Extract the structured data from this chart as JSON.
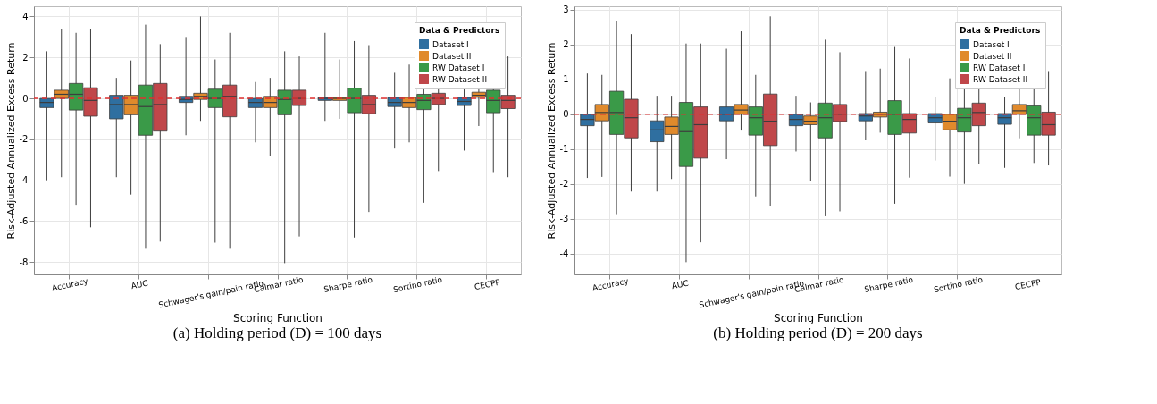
{
  "chart_data": [
    {
      "type": "box",
      "title": "(a) Holding period (D) = 100 days",
      "xlabel": "Scoring Function",
      "ylabel": "Risk-Adjusted Annualized Excess Return",
      "legend_title": "Data & Predictors",
      "legend": "top right",
      "grid": true,
      "categories": [
        "Accuracy",
        "AUC",
        "Schwager's gain/pain ratio",
        "Calmar ratio",
        "Sharpe ratio",
        "Sortino ratio",
        "CECPP"
      ],
      "ylim": [
        -8.6,
        4.5
      ],
      "yticks": [
        -8,
        -6,
        -4,
        -2,
        0,
        2,
        4
      ],
      "ref_lines": [
        {
          "axis": "y",
          "value": 0,
          "color": "#e03030",
          "line_style": "dashed"
        }
      ],
      "series": [
        {
          "name": "Dataset I",
          "color": "#2f6fa0",
          "boxes": [
            {
              "low": -4.0,
              "q1": -0.45,
              "median": -0.2,
              "q3": 0.0,
              "high": 2.3
            },
            {
              "low": -3.85,
              "q1": -1.0,
              "median": -0.3,
              "q3": 0.15,
              "high": 1.0
            },
            {
              "low": -1.8,
              "q1": -0.2,
              "median": -0.05,
              "q3": 0.1,
              "high": 3.0
            },
            {
              "low": -2.15,
              "q1": -0.45,
              "median": -0.2,
              "q3": 0.0,
              "high": 0.8
            },
            {
              "low": -1.1,
              "q1": -0.1,
              "median": 0.0,
              "q3": 0.05,
              "high": 3.2
            },
            {
              "low": -2.45,
              "q1": -0.4,
              "median": -0.2,
              "q3": 0.05,
              "high": 1.25
            },
            {
              "low": -2.55,
              "q1": -0.35,
              "median": -0.15,
              "q3": 0.05,
              "high": 1.6
            }
          ]
        },
        {
          "name": "Dataset II",
          "color": "#e08a2c",
          "boxes": [
            {
              "low": -3.85,
              "q1": 0.0,
              "median": 0.2,
              "q3": 0.4,
              "high": 3.4
            },
            {
              "low": -4.7,
              "q1": -0.8,
              "median": -0.3,
              "q3": 0.15,
              "high": 1.85
            },
            {
              "low": -1.1,
              "q1": -0.05,
              "median": 0.1,
              "q3": 0.25,
              "high": 4.0
            },
            {
              "low": -2.8,
              "q1": -0.45,
              "median": -0.2,
              "q3": 0.1,
              "high": 1.0
            },
            {
              "low": -1.0,
              "q1": -0.1,
              "median": 0.0,
              "q3": 0.05,
              "high": 1.9
            },
            {
              "low": -2.15,
              "q1": -0.45,
              "median": -0.2,
              "q3": 0.05,
              "high": 1.65
            },
            {
              "low": -1.35,
              "q1": 0.05,
              "median": 0.15,
              "q3": 0.3,
              "high": 1.5
            }
          ]
        },
        {
          "name": "RW Dataset I",
          "color": "#3a9a48",
          "boxes": [
            {
              "low": -5.2,
              "q1": -0.57,
              "median": 0.2,
              "q3": 0.73,
              "high": 3.2
            },
            {
              "low": -7.35,
              "q1": -1.8,
              "median": -0.4,
              "q3": 0.65,
              "high": 3.6
            },
            {
              "low": -7.05,
              "q1": -0.45,
              "median": 0.0,
              "q3": 0.45,
              "high": 1.9
            },
            {
              "low": -8.05,
              "q1": -0.8,
              "median": -0.05,
              "q3": 0.4,
              "high": 2.3
            },
            {
              "low": -6.8,
              "q1": -0.7,
              "median": 0.0,
              "q3": 0.5,
              "high": 2.8
            },
            {
              "low": -5.1,
              "q1": -0.55,
              "median": -0.1,
              "q3": 0.2,
              "high": 2.1
            },
            {
              "low": -3.6,
              "q1": -0.7,
              "median": -0.1,
              "q3": 0.4,
              "high": 2.1
            }
          ]
        },
        {
          "name": "RW Dataset II",
          "color": "#c0474a",
          "boxes": [
            {
              "low": -6.3,
              "q1": -0.87,
              "median": -0.1,
              "q3": 0.52,
              "high": 3.4
            },
            {
              "low": -7.0,
              "q1": -1.6,
              "median": -0.3,
              "q3": 0.73,
              "high": 2.65
            },
            {
              "low": -7.35,
              "q1": -0.9,
              "median": 0.1,
              "q3": 0.65,
              "high": 3.2
            },
            {
              "low": -6.75,
              "q1": -0.35,
              "median": 0.0,
              "q3": 0.4,
              "high": 2.05
            },
            {
              "low": -5.55,
              "q1": -0.75,
              "median": -0.3,
              "q3": 0.15,
              "high": 2.6
            },
            {
              "low": -3.55,
              "q1": -0.3,
              "median": 0.0,
              "q3": 0.25,
              "high": 2.7
            },
            {
              "low": -3.85,
              "q1": -0.5,
              "median": -0.1,
              "q3": 0.15,
              "high": 2.05
            }
          ]
        }
      ]
    },
    {
      "type": "box",
      "title": "(b) Holding period (D) = 200 days",
      "xlabel": "Scoring Function",
      "ylabel": "Risk-Adjusted Annualized Excess Return",
      "legend_title": "Data & Predictors",
      "legend": "top right",
      "grid": true,
      "categories": [
        "Accuracy",
        "AUC",
        "Schwager's gain/pain ratio",
        "Calmar ratio",
        "Sharpe ratio",
        "Sortino ratio",
        "CECPP"
      ],
      "ylim": [
        -4.6,
        3.1
      ],
      "yticks": [
        -4,
        -3,
        -2,
        -1,
        0,
        1,
        2,
        3
      ],
      "ref_lines": [
        {
          "axis": "y",
          "value": 0,
          "color": "#e03030",
          "line_style": "dashed"
        }
      ],
      "series": [
        {
          "name": "Dataset I",
          "color": "#2f6fa0",
          "boxes": [
            {
              "low": -1.83,
              "q1": -0.33,
              "median": -0.15,
              "q3": 0.0,
              "high": 1.17
            },
            {
              "low": -2.22,
              "q1": -0.79,
              "median": -0.45,
              "q3": -0.19,
              "high": 0.53
            },
            {
              "low": -1.29,
              "q1": -0.19,
              "median": 0.0,
              "q3": 0.21,
              "high": 1.88
            },
            {
              "low": -1.07,
              "q1": -0.33,
              "median": -0.15,
              "q3": 0.0,
              "high": 0.53
            },
            {
              "low": -0.75,
              "q1": -0.19,
              "median": -0.05,
              "q3": 0.02,
              "high": 1.24
            },
            {
              "low": -1.33,
              "q1": -0.25,
              "median": -0.1,
              "q3": 0.02,
              "high": 0.49
            },
            {
              "low": -1.54,
              "q1": -0.29,
              "median": -0.1,
              "q3": 0.02,
              "high": 0.49
            }
          ]
        },
        {
          "name": "Dataset II",
          "color": "#e08a2c",
          "boxes": [
            {
              "low": -1.8,
              "q1": -0.19,
              "median": 0.05,
              "q3": 0.28,
              "high": 1.13
            },
            {
              "low": -1.86,
              "q1": -0.58,
              "median": -0.35,
              "q3": -0.08,
              "high": 0.53
            },
            {
              "low": -0.47,
              "q1": 0.0,
              "median": 0.12,
              "q3": 0.28,
              "high": 2.38
            },
            {
              "low": -1.93,
              "q1": -0.3,
              "median": -0.2,
              "q3": -0.05,
              "high": 0.34
            },
            {
              "low": -0.53,
              "q1": -0.08,
              "median": 0.0,
              "q3": 0.06,
              "high": 1.31
            },
            {
              "low": -1.79,
              "q1": -0.45,
              "median": -0.2,
              "q3": 0.0,
              "high": 1.03
            },
            {
              "low": -0.69,
              "q1": 0.0,
              "median": 0.1,
              "q3": 0.28,
              "high": 0.77
            }
          ]
        },
        {
          "name": "RW Dataset I",
          "color": "#3a9a48",
          "boxes": [
            {
              "low": -2.87,
              "q1": -0.58,
              "median": 0.05,
              "q3": 0.66,
              "high": 2.67
            },
            {
              "low": -4.25,
              "q1": -1.5,
              "median": -0.5,
              "q3": 0.34,
              "high": 2.03
            },
            {
              "low": -2.36,
              "q1": -0.6,
              "median": -0.1,
              "q3": 0.21,
              "high": 1.13
            },
            {
              "low": -2.93,
              "q1": -0.68,
              "median": -0.1,
              "q3": 0.32,
              "high": 2.14
            },
            {
              "low": -2.57,
              "q1": -0.58,
              "median": 0.0,
              "q3": 0.39,
              "high": 1.93
            },
            {
              "low": -2.0,
              "q1": -0.51,
              "median": -0.1,
              "q3": 0.17,
              "high": 1.56
            },
            {
              "low": -1.4,
              "q1": -0.6,
              "median": -0.1,
              "q3": 0.24,
              "high": 1.73
            }
          ]
        },
        {
          "name": "RW Dataset II",
          "color": "#c0474a",
          "boxes": [
            {
              "low": -2.22,
              "q1": -0.68,
              "median": -0.1,
              "q3": 0.43,
              "high": 2.3
            },
            {
              "low": -3.68,
              "q1": -1.26,
              "median": -0.3,
              "q3": 0.21,
              "high": 2.03
            },
            {
              "low": -2.65,
              "q1": -0.9,
              "median": -0.2,
              "q3": 0.58,
              "high": 2.81
            },
            {
              "low": -2.79,
              "q1": -0.21,
              "median": 0.0,
              "q3": 0.28,
              "high": 1.78
            },
            {
              "low": -1.82,
              "q1": -0.54,
              "median": -0.15,
              "q3": 0.02,
              "high": 1.6
            },
            {
              "low": -1.43,
              "q1": -0.33,
              "median": 0.05,
              "q3": 0.32,
              "high": 1.96
            },
            {
              "low": -1.47,
              "q1": -0.6,
              "median": -0.3,
              "q3": 0.06,
              "high": 1.24
            }
          ]
        }
      ]
    }
  ]
}
